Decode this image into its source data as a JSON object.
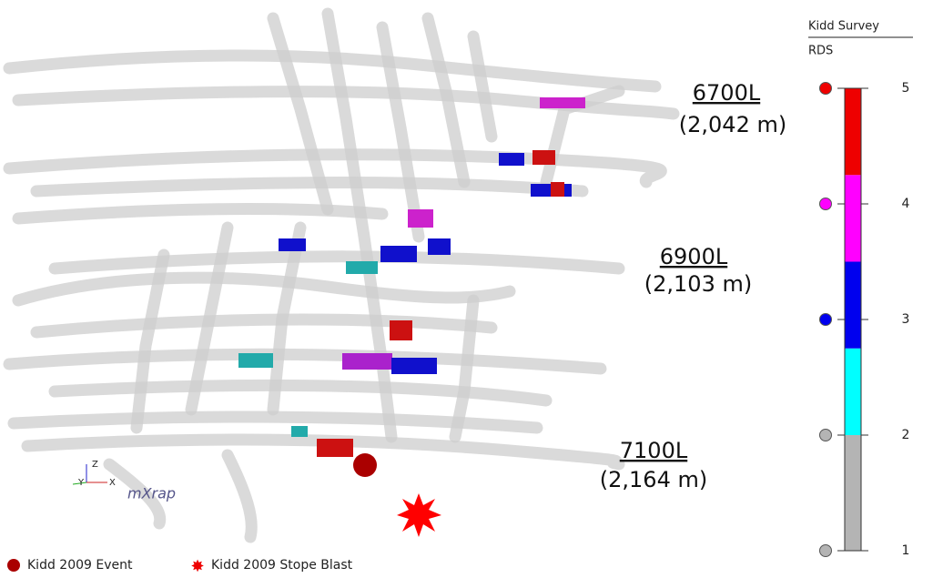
{
  "legend": {
    "title": "Kidd Survey",
    "subtitle": "RDS",
    "scale": {
      "range": [
        1,
        5
      ],
      "ticks": [
        1,
        2,
        3,
        4,
        5
      ],
      "bands": [
        {
          "from": 1,
          "to": 2,
          "color": "#b4b4b4"
        },
        {
          "from": 2,
          "to": 2.75,
          "color": "#00ffff"
        },
        {
          "from": 2.75,
          "to": 3.5,
          "color": "#0000ee"
        },
        {
          "from": 3.5,
          "to": 4.25,
          "color": "#ff00ff"
        },
        {
          "from": 4.25,
          "to": 5,
          "color": "#ee0000"
        }
      ]
    },
    "items": [
      "Kidd 2009 Event",
      "Kidd 2009 Stope Blast"
    ]
  },
  "levels": [
    {
      "name": "6700L",
      "depth": "(2,042 m)"
    },
    {
      "name": "6900L",
      "depth": "(2,103 m)"
    },
    {
      "name": "7100L",
      "depth": "(2,164 m)"
    }
  ],
  "axes": [
    "Z",
    "Y",
    "X"
  ],
  "logo": "mXrap"
}
